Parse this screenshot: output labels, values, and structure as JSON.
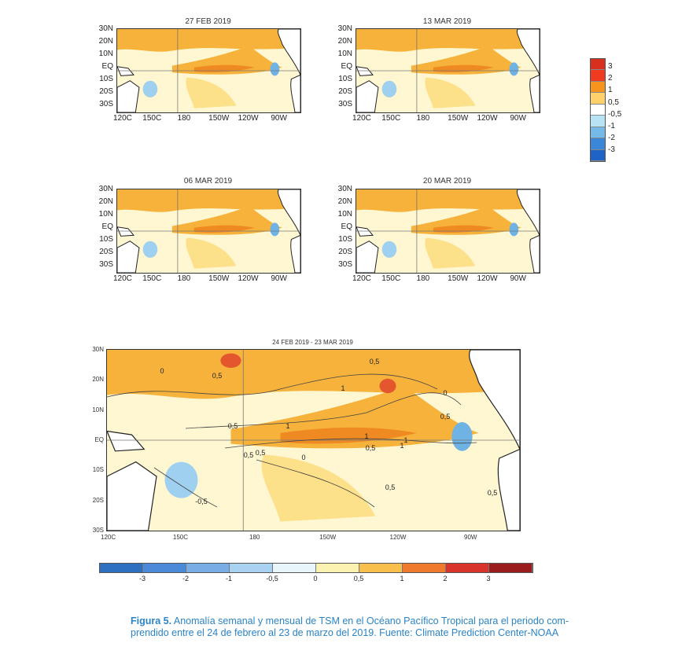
{
  "maps": [
    {
      "id": "m1",
      "title": "27 FEB 2019"
    },
    {
      "id": "m2",
      "title": "13 MAR 2019"
    },
    {
      "id": "m3",
      "title": "06 MAR 2019"
    },
    {
      "id": "m4",
      "title": "20 MAR 2019"
    }
  ],
  "lat_labels": [
    "30N",
    "20N",
    "10N",
    "EQ",
    "10S",
    "20S",
    "30S"
  ],
  "lon_labels": [
    "120C",
    "150C",
    "180",
    "150W",
    "120W",
    "90W"
  ],
  "vertical_legend": {
    "labels": [
      "3",
      "2",
      "1",
      "0,5",
      "-0,5",
      "-1",
      "-2",
      "-3"
    ],
    "colors": [
      "#d7301f",
      "#f03b20",
      "#f7941d",
      "#fed16a",
      "#ffffff",
      "#b8e3f5",
      "#74b9e8",
      "#3a87d9",
      "#1f63c7"
    ]
  },
  "monthly_map": {
    "title": "24 FEB 2019 - 23 MAR 2019",
    "contour_labels": [
      "0,5",
      "0,5",
      "1",
      "1",
      "0,5",
      "0,5",
      "0,5",
      "1",
      "1",
      "0,5",
      "0,5",
      "1",
      "0,5",
      "-0,5",
      "0",
      "0",
      "0",
      "0,5"
    ]
  },
  "horizontal_legend": {
    "labels": [
      "-3",
      "-2",
      "-1",
      "-0,5",
      "0",
      "0,5",
      "1",
      "2",
      "3"
    ],
    "colors": [
      "#2d6fc0",
      "#4a8ad8",
      "#78aee6",
      "#a8d2f0",
      "#e8f6fb",
      "#fbf1b0",
      "#f8bf4c",
      "#f07a2b",
      "#d8342a",
      "#9b1c1c"
    ]
  },
  "caption": {
    "label": "Figura 5.",
    "line1": " Anomalía semanal y mensual de TSM en el Océano Pacífico Tropical para el periodo com-",
    "line2": "prendido entre el 24 de febrero al 23 de marzo del 2019. Fuente: Climate Prediction Center-NOAA"
  },
  "chart_data": {
    "type": "heatmap",
    "title": "24 FEB 2019 - 23 MAR 2019",
    "xlabel": "",
    "ylabel": "",
    "x_ticks": [
      "120C",
      "150C",
      "180",
      "150W",
      "120W",
      "90W"
    ],
    "y_ticks": [
      "30N",
      "20N",
      "10N",
      "EQ",
      "10S",
      "20S",
      "30S"
    ],
    "color_scale": [
      -3,
      -2,
      -1,
      -0.5,
      0,
      0.5,
      1,
      2,
      3
    ],
    "panels": [
      "27 FEB 2019",
      "13 MAR 2019",
      "06 MAR 2019",
      "20 MAR 2019",
      "24 FEB 2019 - 23 MAR 2019"
    ]
  }
}
